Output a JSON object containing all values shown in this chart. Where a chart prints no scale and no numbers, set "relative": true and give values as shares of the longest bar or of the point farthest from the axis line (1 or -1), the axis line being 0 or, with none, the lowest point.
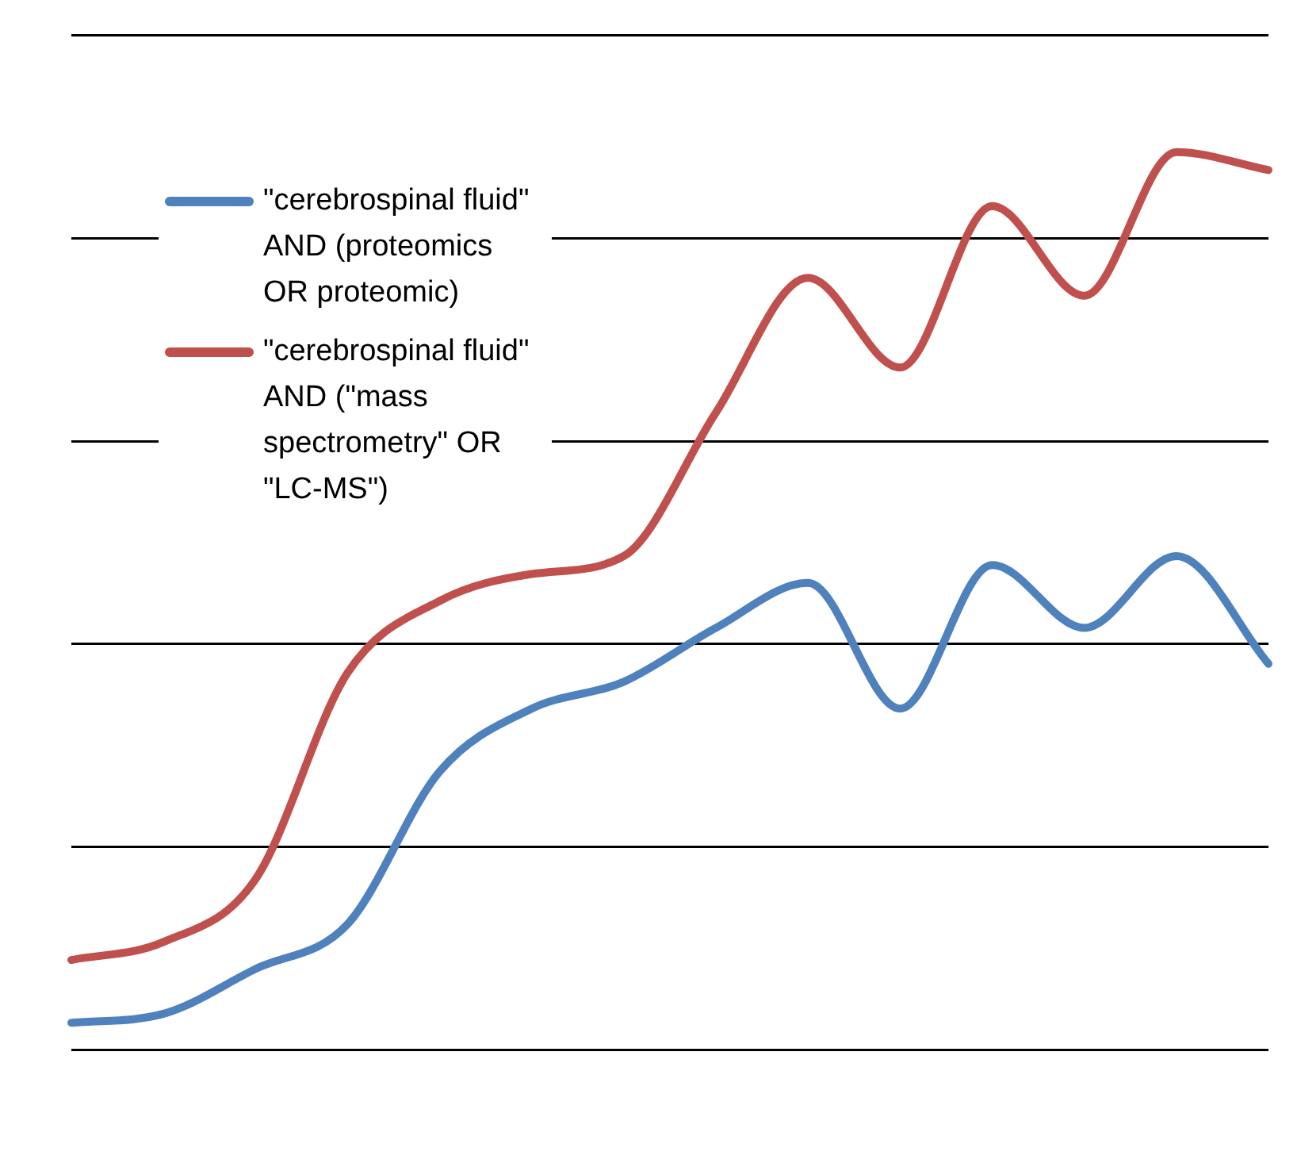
{
  "chart_data": {
    "type": "line",
    "relative": true,
    "grid": "y",
    "legend": "top left",
    "marker": "none",
    "line_style": "solid",
    "categories": [
      null,
      null,
      null,
      null,
      null,
      null,
      null,
      null,
      null,
      null,
      null,
      null,
      null,
      null
    ],
    "series": [
      {
        "name": "\"cerebrospinal fluid\" AND (proteomics OR proteomic)",
        "color": "#4f81bd",
        "values": [
          0.03,
          0.04,
          0.09,
          0.14,
          0.31,
          0.38,
          0.41,
          0.47,
          0.52,
          0.38,
          0.54,
          0.47,
          0.55,
          0.43
        ]
      },
      {
        "name": "\"cerebrospinal fluid\" AND (\"mass spectrometry\" OR \"LC-MS\")",
        "color": "#c0504d",
        "values": [
          0.1,
          0.12,
          0.19,
          0.42,
          0.5,
          0.53,
          0.55,
          0.71,
          0.86,
          0.76,
          0.94,
          0.84,
          1,
          0.98
        ]
      }
    ]
  }
}
